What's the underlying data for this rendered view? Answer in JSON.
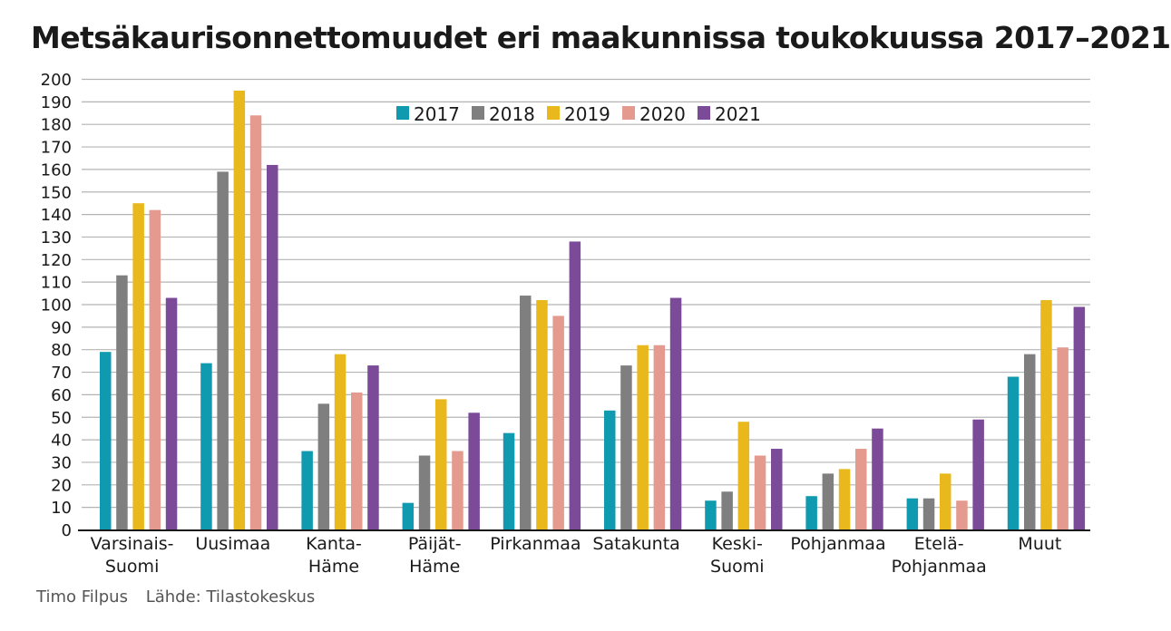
{
  "chart_data": {
    "type": "bar",
    "title": "Metsäkaurisonnettomuudet eri maakunnissa toukokuussa 2017–2021",
    "categories": [
      [
        "Varsinais-",
        "Suomi"
      ],
      [
        "Uusimaa"
      ],
      [
        "Kanta-",
        "Häme"
      ],
      [
        "Päijät-",
        "Häme"
      ],
      [
        "Pirkanmaa"
      ],
      [
        "Satakunta"
      ],
      [
        "Keski-",
        "Suomi"
      ],
      [
        "Pohjanmaa"
      ],
      [
        "Etelä-",
        "Pohjanmaa"
      ],
      [
        "Muut"
      ]
    ],
    "series": [
      {
        "name": "2017",
        "color": "#0f9ab0",
        "values": [
          79,
          74,
          35,
          12,
          43,
          53,
          13,
          15,
          14,
          68
        ]
      },
      {
        "name": "2018",
        "color": "#7f7f7f",
        "values": [
          113,
          159,
          56,
          33,
          104,
          73,
          17,
          25,
          14,
          78
        ]
      },
      {
        "name": "2019",
        "color": "#e8b81c",
        "values": [
          145,
          195,
          78,
          58,
          102,
          82,
          48,
          27,
          25,
          102
        ]
      },
      {
        "name": "2020",
        "color": "#e49a8f",
        "values": [
          142,
          184,
          61,
          35,
          95,
          82,
          33,
          36,
          13,
          81
        ]
      },
      {
        "name": "2021",
        "color": "#7b4a99",
        "values": [
          103,
          162,
          73,
          52,
          128,
          103,
          36,
          45,
          49,
          99
        ]
      }
    ],
    "ylim": [
      0,
      200
    ],
    "yticks": [
      0,
      10,
      20,
      30,
      40,
      50,
      60,
      70,
      80,
      90,
      100,
      110,
      120,
      130,
      140,
      150,
      160,
      170,
      180,
      190,
      200
    ],
    "grid": true,
    "legend_position": "top-center"
  },
  "footer": {
    "author": "Timo Filpus",
    "source": "Lähde: Tilastokeskus"
  }
}
